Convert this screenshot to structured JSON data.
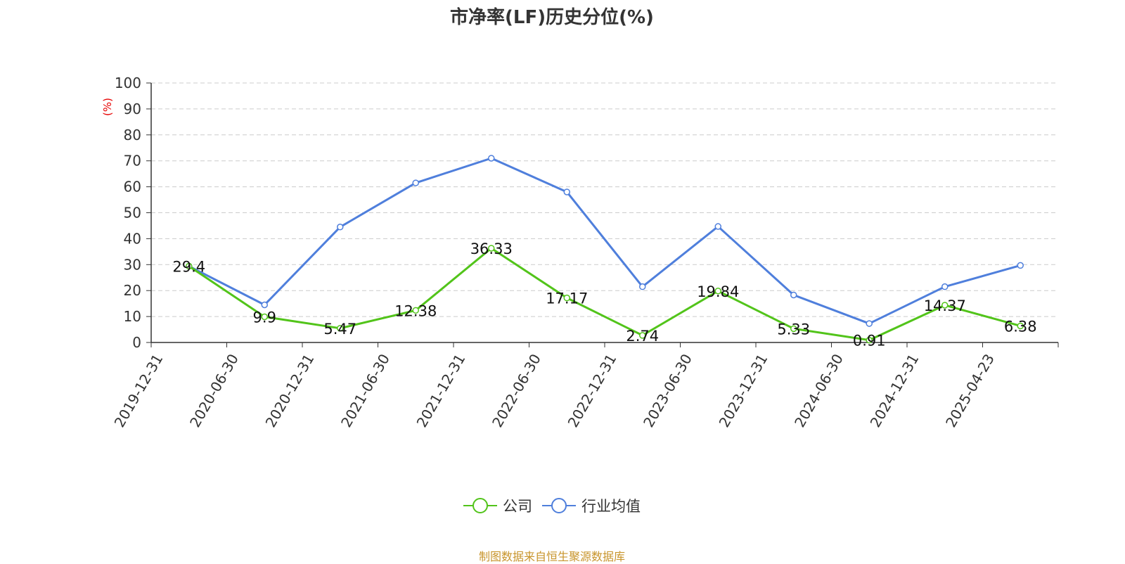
{
  "chart_data": {
    "type": "line",
    "title": "市净率(LF)历史分位(%)",
    "ylabel": "(%)",
    "xlabel": "",
    "ylim": [
      0,
      100
    ],
    "yticks": [
      "0",
      "10",
      "20",
      "30",
      "40",
      "50",
      "60",
      "70",
      "80",
      "90",
      "100"
    ],
    "grid": true,
    "legend_position": "bottom",
    "categories": [
      "2019-12-31",
      "2020-06-30",
      "2020-12-31",
      "2021-06-30",
      "2021-12-31",
      "2022-06-30",
      "2022-12-31",
      "2023-06-30",
      "2023-12-31",
      "2024-06-30",
      "2024-12-31",
      "2025-04-23"
    ],
    "series": [
      {
        "name": "公司",
        "color": "#52c41a",
        "values": [
          29.4,
          9.9,
          5.47,
          12.38,
          36.33,
          17.17,
          2.74,
          19.84,
          5.33,
          0.91,
          14.37,
          6.38
        ],
        "labels": [
          "29.4",
          "9.9",
          "5.47",
          "12.38",
          "36.33",
          "17.17",
          "2.74",
          "19.84",
          "5.33",
          "0.91",
          "14.37",
          "6.38"
        ]
      },
      {
        "name": "行业均值",
        "color": "#4f7fdc",
        "values": [
          29.4,
          14.5,
          44.5,
          61.5,
          71,
          58,
          21.5,
          44.7,
          18.3,
          7.3,
          21.5,
          29.7
        ]
      }
    ]
  },
  "footer": "制图数据来自恒生聚源数据库"
}
